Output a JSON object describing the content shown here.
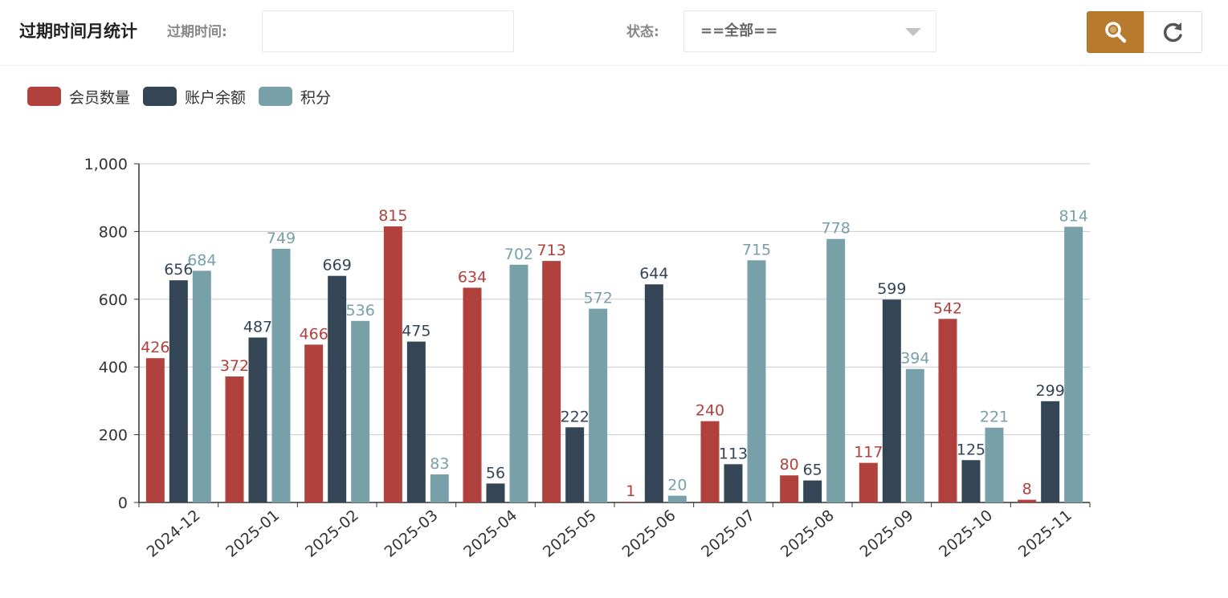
{
  "header": {
    "title": "过期时间月统计",
    "date_label": "过期时间:",
    "date_value": "",
    "status_label": "状态:",
    "status_value": "==全部==",
    "search_icon": "search-icon",
    "refresh_icon": "refresh-icon"
  },
  "colors": {
    "accent": "#b87a2c",
    "series": [
      "#b0413c",
      "#344556",
      "#78a0a8"
    ]
  },
  "chart_data": {
    "type": "bar",
    "categories": [
      "2024-12",
      "2025-01",
      "2025-02",
      "2025-03",
      "2025-04",
      "2025-05",
      "2025-06",
      "2025-07",
      "2025-08",
      "2025-09",
      "2025-10",
      "2025-11"
    ],
    "series": [
      {
        "name": "会员数量",
        "values": [
          426,
          372,
          466,
          815,
          634,
          713,
          1,
          240,
          80,
          117,
          542,
          8
        ]
      },
      {
        "name": "账户余额",
        "values": [
          656,
          487,
          669,
          475,
          56,
          222,
          644,
          113,
          65,
          599,
          125,
          299
        ]
      },
      {
        "name": "积分",
        "values": [
          684,
          749,
          536,
          83,
          702,
          572,
          20,
          715,
          778,
          394,
          221,
          814
        ]
      }
    ],
    "ylim": [
      0,
      1000
    ],
    "yticks": [
      0,
      200,
      400,
      600,
      800,
      1000
    ],
    "ytick_labels": [
      "0",
      "200",
      "400",
      "600",
      "800",
      "1,000"
    ],
    "grid": true,
    "legend": "top-left",
    "xlabel": "",
    "ylabel": ""
  }
}
